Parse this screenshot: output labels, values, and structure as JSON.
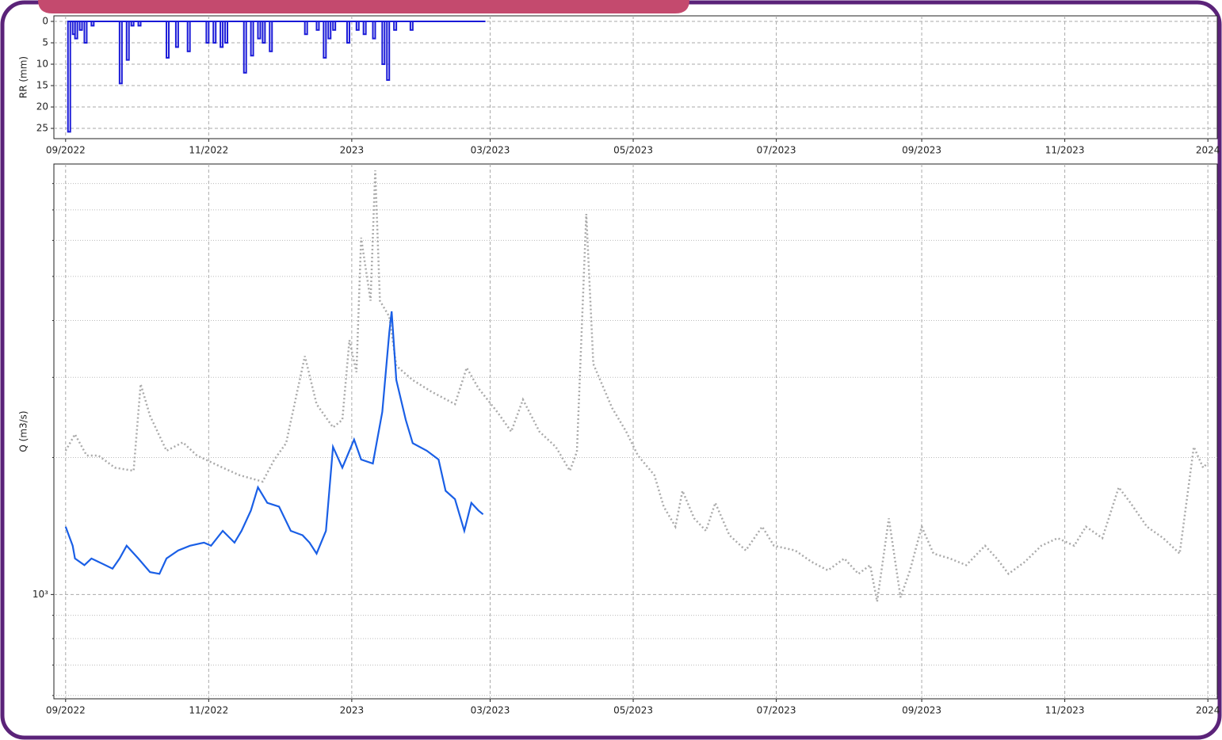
{
  "chart_data": [
    {
      "type": "step",
      "ylabel": "RR (mm)",
      "y_inverted": true,
      "ylim": [
        -1.3,
        27.4
      ],
      "yticks": [
        0,
        5,
        10,
        15,
        20,
        25
      ],
      "xlim": [
        "2022-08-27",
        "2024-01-05"
      ],
      "xticks": [
        {
          "value": "2022-09-01",
          "label": "09/2022"
        },
        {
          "value": "2022-11-01",
          "label": "11/2022"
        },
        {
          "value": "2023-01-01",
          "label": "2023"
        },
        {
          "value": "2023-03-01",
          "label": "03/2023"
        },
        {
          "value": "2023-05-01",
          "label": "05/2023"
        },
        {
          "value": "2023-07-01",
          "label": "07/2023"
        },
        {
          "value": "2023-09-01",
          "label": "09/2023"
        },
        {
          "value": "2023-11-01",
          "label": "11/2023"
        },
        {
          "value": "2024-01-01",
          "label": "2024"
        }
      ],
      "grid": true,
      "series": [
        {
          "color": "#1a1ad8",
          "x": [
            "2022-09-02",
            "2022-09-04",
            "2022-09-05",
            "2022-09-07",
            "2022-09-09",
            "2022-09-12",
            "2022-09-24",
            "2022-09-27",
            "2022-09-29",
            "2022-10-02",
            "2022-10-14",
            "2022-10-18",
            "2022-10-23",
            "2022-10-31",
            "2022-11-03",
            "2022-11-06",
            "2022-11-08",
            "2022-11-16",
            "2022-11-19",
            "2022-11-22",
            "2022-11-24",
            "2022-11-27",
            "2022-12-12",
            "2022-12-17",
            "2022-12-20",
            "2022-12-22",
            "2022-12-24",
            "2022-12-30",
            "2023-01-03",
            "2023-01-06",
            "2023-01-10",
            "2023-01-14",
            "2023-01-16",
            "2023-01-19",
            "2023-01-26",
            "2023-02-26"
          ],
          "values": [
            25.8,
            3,
            4,
            2,
            5,
            1,
            14.5,
            9,
            1,
            1,
            8.5,
            6,
            7,
            5,
            5,
            6,
            5,
            12,
            8,
            4,
            5,
            7,
            3,
            2,
            8.5,
            4,
            2,
            5,
            2,
            3,
            4,
            10,
            13.7,
            2,
            2,
            0
          ]
        }
      ]
    },
    {
      "type": "line",
      "ylabel": "Q (m3/s)",
      "log_y": true,
      "ylim": [
        590,
        8830
      ],
      "yticks": [
        {
          "value": 1000,
          "label": "10³"
        }
      ],
      "yminorticks": [
        600,
        700,
        800,
        900,
        2000,
        3000,
        4000,
        5000,
        6000,
        7000,
        8000
      ],
      "xlim": [
        "2022-08-27",
        "2024-01-05"
      ],
      "xticks": [
        {
          "value": "2022-09-01",
          "label": "09/2022"
        },
        {
          "value": "2022-11-01",
          "label": "11/2022"
        },
        {
          "value": "2023-01-01",
          "label": "2023"
        },
        {
          "value": "2023-03-01",
          "label": "03/2023"
        },
        {
          "value": "2023-05-01",
          "label": "05/2023"
        },
        {
          "value": "2023-07-01",
          "label": "07/2023"
        },
        {
          "value": "2023-09-01",
          "label": "09/2023"
        },
        {
          "value": "2023-11-01",
          "label": "11/2023"
        },
        {
          "value": "2024-01-01",
          "label": "2024"
        }
      ],
      "grid": true,
      "series": [
        {
          "color": "#aaaaaa",
          "linestyle": "dotted",
          "x": [
            "2022-09-01",
            "2022-09-05",
            "2022-09-10",
            "2022-09-15",
            "2022-09-22",
            "2022-09-30",
            "2022-10-03",
            "2022-10-07",
            "2022-10-14",
            "2022-10-21",
            "2022-10-27",
            "2022-11-07",
            "2022-11-14",
            "2022-11-24",
            "2022-11-29",
            "2022-12-04",
            "2022-12-12",
            "2022-12-17",
            "2022-12-24",
            "2022-12-28",
            "2022-12-31",
            "2023-01-03",
            "2023-01-05",
            "2023-01-09",
            "2023-01-11",
            "2023-01-13",
            "2023-01-17",
            "2023-01-20",
            "2023-01-27",
            "2023-02-04",
            "2023-02-14",
            "2023-02-19",
            "2023-02-24",
            "2023-03-04",
            "2023-03-10",
            "2023-03-15",
            "2023-03-22",
            "2023-03-29",
            "2023-04-04",
            "2023-04-07",
            "2023-04-11",
            "2023-04-14",
            "2023-04-22",
            "2023-04-28",
            "2023-05-03",
            "2023-05-10",
            "2023-05-14",
            "2023-05-19",
            "2023-05-22",
            "2023-05-27",
            "2023-06-01",
            "2023-06-05",
            "2023-06-11",
            "2023-06-18",
            "2023-06-25",
            "2023-06-30",
            "2023-07-09",
            "2023-07-16",
            "2023-07-23",
            "2023-07-30",
            "2023-08-05",
            "2023-08-10",
            "2023-08-13",
            "2023-08-18",
            "2023-08-23",
            "2023-08-27",
            "2023-09-01",
            "2023-09-06",
            "2023-09-13",
            "2023-09-20",
            "2023-09-28",
            "2023-10-03",
            "2023-10-08",
            "2023-10-15",
            "2023-10-22",
            "2023-10-29",
            "2023-11-05",
            "2023-11-10",
            "2023-11-17",
            "2023-11-24",
            "2023-11-29",
            "2023-12-06",
            "2023-12-13",
            "2023-12-20",
            "2023-12-26",
            "2023-12-30",
            "2024-01-01"
          ],
          "values": [
            2070,
            2250,
            2020,
            2020,
            1900,
            1870,
            2900,
            2470,
            2070,
            2160,
            2020,
            1900,
            1830,
            1770,
            1980,
            2150,
            3340,
            2620,
            2330,
            2420,
            3620,
            3080,
            6080,
            4420,
            8550,
            4420,
            4080,
            3180,
            2960,
            2790,
            2620,
            3150,
            2840,
            2520,
            2280,
            2680,
            2280,
            2110,
            1870,
            2060,
            6860,
            3210,
            2570,
            2280,
            2020,
            1830,
            1560,
            1410,
            1690,
            1470,
            1380,
            1590,
            1350,
            1250,
            1410,
            1280,
            1250,
            1180,
            1130,
            1200,
            1110,
            1160,
            965,
            1470,
            985,
            1130,
            1410,
            1230,
            1200,
            1160,
            1280,
            1200,
            1110,
            1180,
            1280,
            1330,
            1280,
            1410,
            1330,
            1720,
            1590,
            1410,
            1330,
            1230,
            2110,
            1900,
            1950
          ]
        },
        {
          "color": "#1a5fe6",
          "linestyle": "solid",
          "x": [
            "2022-09-01",
            "2022-09-04",
            "2022-09-05",
            "2022-09-09",
            "2022-09-12",
            "2022-09-15",
            "2022-09-21",
            "2022-09-24",
            "2022-09-27",
            "2022-10-02",
            "2022-10-07",
            "2022-10-11",
            "2022-10-14",
            "2022-10-19",
            "2022-10-24",
            "2022-10-30",
            "2022-11-02",
            "2022-11-07",
            "2022-11-12",
            "2022-11-15",
            "2022-11-19",
            "2022-11-22",
            "2022-11-26",
            "2022-12-01",
            "2022-12-06",
            "2022-12-11",
            "2022-12-14",
            "2022-12-17",
            "2022-12-21",
            "2022-12-24",
            "2022-12-28",
            "2023-01-02",
            "2023-01-05",
            "2023-01-10",
            "2023-01-14",
            "2023-01-17",
            "2023-01-18",
            "2023-01-20",
            "2023-01-24",
            "2023-01-27",
            "2023-02-02",
            "2023-02-07",
            "2023-02-10",
            "2023-02-14",
            "2023-02-18",
            "2023-02-21",
            "2023-02-24",
            "2023-02-26"
          ],
          "values": [
            1410,
            1280,
            1200,
            1160,
            1200,
            1180,
            1140,
            1200,
            1280,
            1200,
            1120,
            1110,
            1200,
            1250,
            1280,
            1300,
            1280,
            1380,
            1300,
            1380,
            1530,
            1720,
            1590,
            1560,
            1380,
            1350,
            1300,
            1230,
            1380,
            2110,
            1900,
            2190,
            1980,
            1940,
            2520,
            3760,
            4190,
            2960,
            2420,
            2150,
            2070,
            1980,
            1690,
            1620,
            1380,
            1590,
            1530,
            1500
          ]
        }
      ]
    }
  ]
}
